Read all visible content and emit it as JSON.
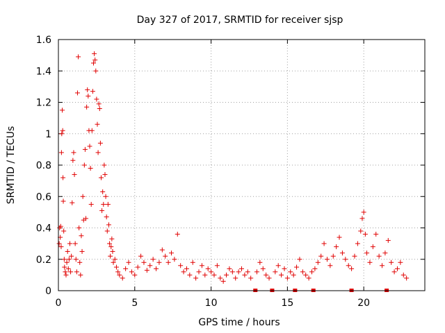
{
  "chart_data": {
    "type": "scatter",
    "title": "Day 327 of 2017, SRMTID for receiver sjsp",
    "xlabel": "GPS time / hours",
    "ylabel": "SRMTID / TECUs",
    "xlim": [
      0,
      24
    ],
    "ylim": [
      0,
      1.6
    ],
    "xticks": [
      0,
      5,
      10,
      15,
      20
    ],
    "xtick_labels": [
      "0",
      "5",
      "10",
      "15",
      "20"
    ],
    "yticks": [
      0,
      0.2,
      0.4,
      0.6,
      0.8,
      1,
      1.2,
      1.4,
      1.6
    ],
    "ytick_labels": [
      "0",
      "0.2",
      "0.4",
      "0.6",
      "0.8",
      "1",
      "1.2",
      "1.4",
      "1.6"
    ],
    "grid": true,
    "marker": "plus",
    "color": "#e00000",
    "data_gap_markers_x": [
      12.9,
      14.0,
      15.5,
      16.7,
      19.2,
      21.5
    ],
    "series": [
      {
        "name": "SRMTID",
        "points": [
          [
            0.05,
            0.3
          ],
          [
            0.08,
            0.4
          ],
          [
            0.12,
            0.34
          ],
          [
            0.15,
            0.41
          ],
          [
            0.18,
            0.28
          ],
          [
            0.2,
            0.88
          ],
          [
            0.22,
            1.0
          ],
          [
            0.25,
            1.15
          ],
          [
            0.28,
            1.02
          ],
          [
            0.3,
            0.72
          ],
          [
            0.32,
            0.57
          ],
          [
            0.35,
            0.38
          ],
          [
            0.38,
            0.2
          ],
          [
            0.4,
            0.15
          ],
          [
            0.45,
            0.12
          ],
          [
            0.5,
            0.1
          ],
          [
            0.55,
            0.18
          ],
          [
            0.6,
            0.25
          ],
          [
            0.65,
            0.14
          ],
          [
            0.7,
            0.2
          ],
          [
            0.75,
            0.3
          ],
          [
            0.8,
            0.12
          ],
          [
            0.85,
            0.22
          ],
          [
            0.9,
            0.56
          ],
          [
            0.95,
            0.83
          ],
          [
            1.0,
            0.88
          ],
          [
            1.05,
            0.74
          ],
          [
            1.1,
            0.3
          ],
          [
            1.15,
            0.2
          ],
          [
            1.2,
            0.12
          ],
          [
            1.25,
            1.26
          ],
          [
            1.3,
            1.49
          ],
          [
            1.35,
            0.4
          ],
          [
            1.4,
            0.18
          ],
          [
            1.45,
            0.1
          ],
          [
            1.5,
            0.35
          ],
          [
            1.55,
            0.25
          ],
          [
            1.6,
            0.6
          ],
          [
            1.65,
            0.45
          ],
          [
            1.7,
            0.8
          ],
          [
            1.75,
            0.9
          ],
          [
            1.8,
            0.46
          ],
          [
            1.85,
            1.17
          ],
          [
            1.9,
            1.28
          ],
          [
            1.95,
            1.24
          ],
          [
            2.0,
            1.02
          ],
          [
            2.05,
            0.92
          ],
          [
            2.1,
            0.78
          ],
          [
            2.15,
            0.55
          ],
          [
            2.2,
            1.02
          ],
          [
            2.25,
            1.27
          ],
          [
            2.3,
            1.45
          ],
          [
            2.35,
            1.51
          ],
          [
            2.4,
            1.47
          ],
          [
            2.45,
            1.4
          ],
          [
            2.5,
            1.22
          ],
          [
            2.55,
            1.06
          ],
          [
            2.6,
            0.88
          ],
          [
            2.65,
            1.19
          ],
          [
            2.7,
            1.16
          ],
          [
            2.75,
            0.94
          ],
          [
            2.8,
            0.72
          ],
          [
            2.85,
            0.51
          ],
          [
            2.9,
            0.63
          ],
          [
            2.95,
            0.55
          ],
          [
            3.0,
            0.8
          ],
          [
            3.05,
            0.74
          ],
          [
            3.1,
            0.6
          ],
          [
            3.15,
            0.47
          ],
          [
            3.2,
            0.38
          ],
          [
            3.25,
            0.55
          ],
          [
            3.3,
            0.42
          ],
          [
            3.35,
            0.3
          ],
          [
            3.4,
            0.22
          ],
          [
            3.45,
            0.28
          ],
          [
            3.5,
            0.33
          ],
          [
            3.55,
            0.25
          ],
          [
            3.6,
            0.18
          ],
          [
            3.7,
            0.2
          ],
          [
            3.8,
            0.15
          ],
          [
            3.9,
            0.12
          ],
          [
            4.0,
            0.1
          ],
          [
            4.2,
            0.08
          ],
          [
            4.4,
            0.14
          ],
          [
            4.6,
            0.18
          ],
          [
            4.8,
            0.12
          ],
          [
            5.0,
            0.1
          ],
          [
            5.2,
            0.15
          ],
          [
            5.4,
            0.22
          ],
          [
            5.6,
            0.18
          ],
          [
            5.8,
            0.13
          ],
          [
            6.0,
            0.16
          ],
          [
            6.2,
            0.2
          ],
          [
            6.4,
            0.14
          ],
          [
            6.6,
            0.18
          ],
          [
            6.8,
            0.26
          ],
          [
            7.0,
            0.22
          ],
          [
            7.2,
            0.18
          ],
          [
            7.4,
            0.24
          ],
          [
            7.6,
            0.2
          ],
          [
            7.8,
            0.36
          ],
          [
            8.0,
            0.16
          ],
          [
            8.2,
            0.12
          ],
          [
            8.4,
            0.14
          ],
          [
            8.6,
            0.1
          ],
          [
            8.8,
            0.18
          ],
          [
            9.0,
            0.08
          ],
          [
            9.2,
            0.12
          ],
          [
            9.4,
            0.16
          ],
          [
            9.6,
            0.1
          ],
          [
            9.8,
            0.14
          ],
          [
            10.0,
            0.12
          ],
          [
            10.2,
            0.1
          ],
          [
            10.4,
            0.16
          ],
          [
            10.6,
            0.08
          ],
          [
            10.8,
            0.06
          ],
          [
            11.0,
            0.1
          ],
          [
            11.2,
            0.14
          ],
          [
            11.4,
            0.12
          ],
          [
            11.6,
            0.08
          ],
          [
            11.8,
            0.12
          ],
          [
            12.0,
            0.14
          ],
          [
            12.2,
            0.1
          ],
          [
            12.4,
            0.12
          ],
          [
            12.6,
            0.08
          ],
          [
            13.0,
            0.12
          ],
          [
            13.2,
            0.18
          ],
          [
            13.4,
            0.14
          ],
          [
            13.6,
            0.1
          ],
          [
            13.8,
            0.08
          ],
          [
            14.2,
            0.12
          ],
          [
            14.4,
            0.16
          ],
          [
            14.6,
            0.1
          ],
          [
            14.8,
            0.14
          ],
          [
            15.0,
            0.08
          ],
          [
            15.2,
            0.12
          ],
          [
            15.4,
            0.1
          ],
          [
            15.6,
            0.15
          ],
          [
            15.8,
            0.2
          ],
          [
            16.0,
            0.12
          ],
          [
            16.2,
            0.1
          ],
          [
            16.4,
            0.08
          ],
          [
            16.6,
            0.12
          ],
          [
            16.8,
            0.14
          ],
          [
            17.0,
            0.18
          ],
          [
            17.2,
            0.22
          ],
          [
            17.4,
            0.3
          ],
          [
            17.6,
            0.2
          ],
          [
            17.8,
            0.16
          ],
          [
            18.0,
            0.22
          ],
          [
            18.2,
            0.28
          ],
          [
            18.4,
            0.34
          ],
          [
            18.6,
            0.24
          ],
          [
            18.8,
            0.2
          ],
          [
            19.0,
            0.16
          ],
          [
            19.2,
            0.14
          ],
          [
            19.4,
            0.22
          ],
          [
            19.6,
            0.3
          ],
          [
            19.8,
            0.38
          ],
          [
            19.9,
            0.46
          ],
          [
            20.0,
            0.5
          ],
          [
            20.1,
            0.36
          ],
          [
            20.2,
            0.24
          ],
          [
            20.4,
            0.18
          ],
          [
            20.6,
            0.28
          ],
          [
            20.8,
            0.36
          ],
          [
            21.0,
            0.22
          ],
          [
            21.2,
            0.16
          ],
          [
            21.4,
            0.24
          ],
          [
            21.6,
            0.32
          ],
          [
            21.8,
            0.18
          ],
          [
            22.0,
            0.12
          ],
          [
            22.2,
            0.14
          ],
          [
            22.4,
            0.18
          ],
          [
            22.6,
            0.1
          ],
          [
            22.8,
            0.08
          ]
        ]
      }
    ]
  }
}
